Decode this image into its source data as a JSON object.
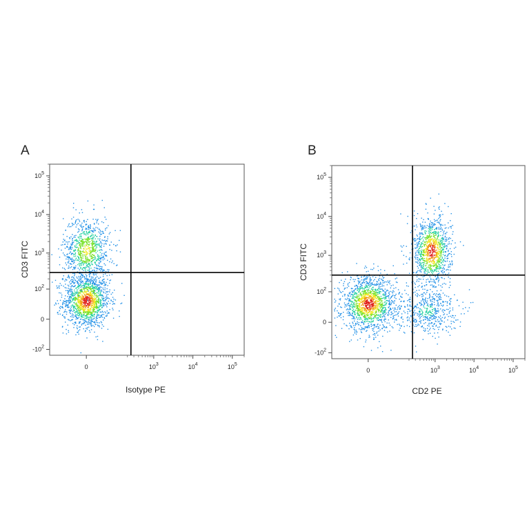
{
  "chart_data": [
    {
      "type": "scatter",
      "panel_label": "A",
      "xlabel": "Isotype PE",
      "ylabel": "CD3 FITC",
      "x_scale": "biexponential",
      "y_scale": "biexponential",
      "x_ticks": [
        {
          "base": "0",
          "exp": ""
        },
        {
          "base": "10",
          "exp": "3"
        },
        {
          "base": "10",
          "exp": "4"
        },
        {
          "base": "10",
          "exp": "5"
        }
      ],
      "y_ticks": [
        {
          "base": "-10",
          "exp": "2"
        },
        {
          "base": "0",
          "exp": ""
        },
        {
          "base": "10",
          "exp": "2"
        },
        {
          "base": "10",
          "exp": "3"
        },
        {
          "base": "10",
          "exp": "4"
        },
        {
          "base": "10",
          "exp": "5"
        }
      ],
      "gate": {
        "x": 250,
        "y": 300
      },
      "populations": [
        {
          "name": "",
          "x_center": 0,
          "y_center": 40,
          "n": 1400,
          "x_spread": 0.06,
          "y_spread": 0.07,
          "density": "high"
        },
        {
          "name": "",
          "x_center": 0,
          "y_center": 1200,
          "n": 900,
          "x_spread": 0.06,
          "y_spread": 0.09,
          "density": "medium"
        }
      ]
    },
    {
      "type": "scatter",
      "panel_label": "B",
      "xlabel": "CD2 PE",
      "ylabel": "CD3 FITC",
      "x_scale": "biexponential",
      "y_scale": "biexponential",
      "x_ticks": [
        {
          "base": "0",
          "exp": ""
        },
        {
          "base": "10",
          "exp": "3"
        },
        {
          "base": "10",
          "exp": "4"
        },
        {
          "base": "10",
          "exp": "5"
        }
      ],
      "y_ticks": [
        {
          "base": "-10",
          "exp": "2"
        },
        {
          "base": "0",
          "exp": ""
        },
        {
          "base": "10",
          "exp": "2"
        },
        {
          "base": "10",
          "exp": "3"
        },
        {
          "base": "10",
          "exp": "4"
        },
        {
          "base": "10",
          "exp": "5"
        }
      ],
      "gate": {
        "x": 250,
        "y": 300
      },
      "populations": [
        {
          "name": "",
          "x_center": 0,
          "y_center": 40,
          "n": 1500,
          "x_spread": 0.07,
          "y_spread": 0.07,
          "density": "high"
        },
        {
          "name": "",
          "x_center": 800,
          "y_center": 1300,
          "n": 1100,
          "x_spread": 0.05,
          "y_spread": 0.09,
          "density": "high"
        },
        {
          "name": "",
          "x_center": 600,
          "y_center": 20,
          "n": 500,
          "x_spread": 0.08,
          "y_spread": 0.06,
          "density": "low"
        }
      ]
    }
  ]
}
